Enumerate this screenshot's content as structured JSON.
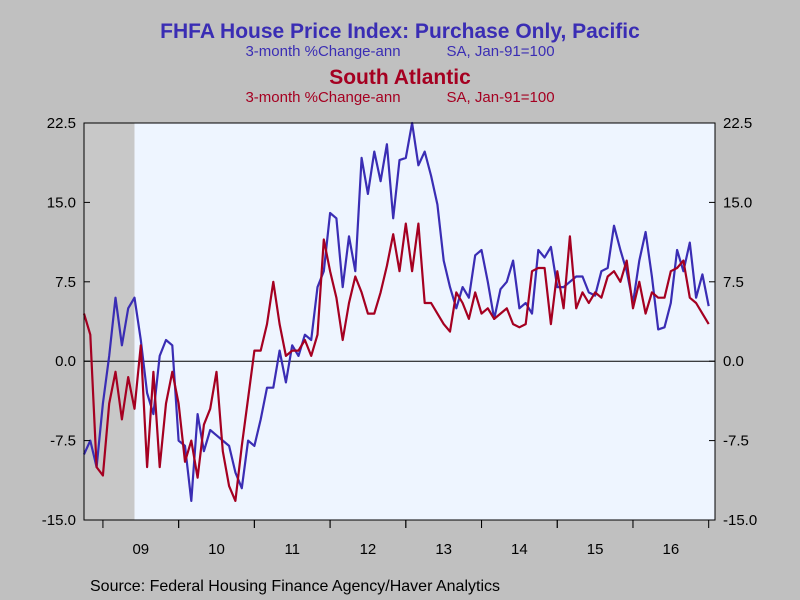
{
  "header": {
    "title1": "FHFA House Price Index: Purchase Only, Pacific",
    "subtitle1a": "3-month %Change-ann",
    "subtitle1b": "SA, Jan-91=100",
    "title2": "South Atlantic",
    "subtitle2a": "3-month %Change-ann",
    "subtitle2b": "SA, Jan-91=100"
  },
  "footer": {
    "source": "Source:  Federal Housing Finance Agency/Haver Analytics"
  },
  "colors": {
    "pacific": "#3a2db4",
    "south_atlantic": "#a50021",
    "plot_bg": "#eef5ff",
    "recession": "#c8c8c8"
  },
  "chart_data": {
    "type": "line",
    "x_start": "2008-10",
    "x_end": "2017-02",
    "ylim": [
      -15,
      22.5
    ],
    "yticks": [
      "22.5",
      "15.0",
      "7.5",
      "0.0",
      "-7.5",
      "-15.0"
    ],
    "ytick_values": [
      22.5,
      15,
      7.5,
      0,
      -7.5,
      -15
    ],
    "xtick_labels": [
      "09",
      "10",
      "11",
      "12",
      "13",
      "14",
      "15",
      "16"
    ],
    "recession": [
      "2008-10",
      "2009-06"
    ],
    "grid": false,
    "series": [
      {
        "name": "FHFA House Price Index: Purchase Only, Pacific",
        "values": [
          -8.8,
          -7.5,
          -10.0,
          -4.0,
          0.5,
          6.0,
          1.5,
          5.0,
          6.0,
          2.0,
          -3.0,
          -5.0,
          0.5,
          2.0,
          1.5,
          -7.5,
          -8.0,
          -13.2,
          -5.0,
          -8.5,
          -6.5,
          -7.0,
          -7.5,
          -8.0,
          -10.5,
          -12.0,
          -7.5,
          -8.0,
          -5.5,
          -2.5,
          -2.5,
          1.0,
          -2.0,
          1.5,
          0.5,
          2.5,
          2.0,
          7.0,
          8.5,
          14.0,
          13.5,
          7.0,
          11.8,
          8.5,
          19.2,
          15.8,
          19.8,
          17.0,
          20.5,
          13.5,
          19.0,
          19.2,
          22.5,
          18.5,
          19.8,
          17.5,
          14.8,
          9.5,
          7.0,
          5.0,
          7.0,
          6.0,
          10.0,
          10.5,
          7.5,
          4.0,
          6.8,
          7.5,
          9.5,
          5.0,
          5.5,
          4.5,
          10.5,
          9.8,
          10.8,
          7.0,
          7.0,
          7.5,
          8.0,
          8.0,
          6.5,
          6.2,
          8.5,
          8.8,
          12.8,
          10.5,
          8.5,
          5.5,
          9.5,
          12.2,
          8.0,
          3.0,
          3.2,
          5.5,
          10.5,
          8.5,
          11.2,
          6.0,
          8.2,
          5.2
        ]
      },
      {
        "name": "South Atlantic",
        "values": [
          4.5,
          2.5,
          -10.0,
          -10.8,
          -4.0,
          -1.0,
          -5.5,
          -1.5,
          -4.5,
          1.5,
          -10.0,
          -1.0,
          -10.0,
          -4.0,
          -1.0,
          -4.0,
          -9.5,
          -7.5,
          -11.0,
          -6.0,
          -4.5,
          -1.0,
          -8.5,
          -11.8,
          -13.2,
          -8.0,
          -3.5,
          1.0,
          1.0,
          3.5,
          7.5,
          3.5,
          0.5,
          1.0,
          1.0,
          2.0,
          0.5,
          2.5,
          11.5,
          8.5,
          6.0,
          2.0,
          5.5,
          8.0,
          6.5,
          4.5,
          4.5,
          6.5,
          9.0,
          12.0,
          8.5,
          13.0,
          8.5,
          13.0,
          5.5,
          5.5,
          4.5,
          3.5,
          2.8,
          6.5,
          5.5,
          4.0,
          6.5,
          4.5,
          5.0,
          4.0,
          4.5,
          5.0,
          3.5,
          3.2,
          3.5,
          8.5,
          8.8,
          8.8,
          3.5,
          8.5,
          5.0,
          11.8,
          5.0,
          6.5,
          5.5,
          6.5,
          6.0,
          8.0,
          8.5,
          7.5,
          9.5,
          5.0,
          7.5,
          4.5,
          6.5,
          6.0,
          6.0,
          8.5,
          8.8,
          9.5,
          6.0,
          5.5,
          4.5,
          3.5
        ]
      }
    ]
  }
}
